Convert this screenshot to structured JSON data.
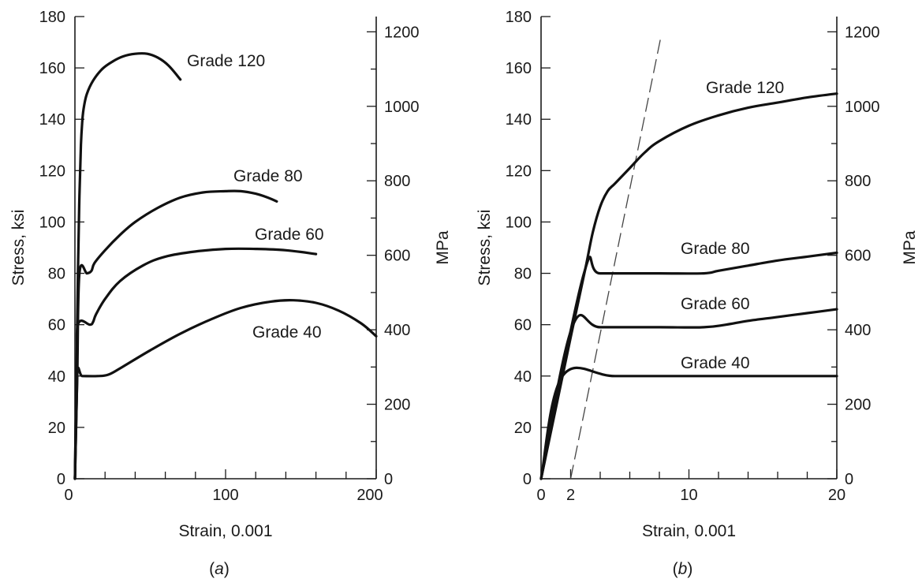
{
  "chart_data": [
    {
      "type": "line",
      "panel_label": "(a)",
      "xlabel": "Strain, 0.001",
      "ylabel": "Stress, ksi",
      "y2label": "MPa",
      "xlim": [
        0,
        200
      ],
      "ylim": [
        0,
        180
      ],
      "y2lim": [
        0,
        1241
      ],
      "x_ticks": [
        0,
        100,
        200
      ],
      "y_ticks": [
        0,
        20,
        40,
        60,
        80,
        100,
        120,
        140,
        160,
        180
      ],
      "y2_ticks": [
        0,
        200,
        400,
        600,
        800,
        1000,
        1200
      ],
      "grid": false,
      "series": [
        {
          "name": "Grade 120",
          "x": [
            0,
            1,
            2,
            3,
            4,
            5,
            6,
            8,
            12,
            18,
            25,
            32,
            40,
            48,
            55,
            62,
            70
          ],
          "y": [
            0,
            40,
            80,
            110,
            130,
            140,
            145,
            150,
            155,
            159.5,
            162.5,
            164.5,
            165.5,
            165.5,
            164,
            161,
            155.5
          ]
        },
        {
          "name": "Grade 80",
          "x": [
            0,
            1.5,
            3,
            8,
            11,
            13,
            20,
            30,
            40,
            55,
            70,
            85,
            100,
            110,
            120,
            128,
            134
          ],
          "y": [
            0,
            40,
            80,
            80,
            81,
            84,
            89,
            95,
            100,
            105.5,
            109.5,
            111.5,
            112,
            112,
            111,
            109.5,
            108
          ]
        },
        {
          "name": "Grade 60",
          "x": [
            0,
            1.5,
            2,
            10,
            12,
            14,
            20,
            30,
            45,
            60,
            80,
            100,
            120,
            140,
            160
          ],
          "y": [
            0,
            40,
            60,
            60,
            61,
            64,
            70,
            77,
            83,
            86.5,
            88.5,
            89.5,
            89.5,
            89,
            87.5
          ]
        },
        {
          "name": "Grade 40",
          "x": [
            0,
            1.4,
            5,
            15,
            22,
            30,
            50,
            70,
            90,
            110,
            130,
            145,
            160,
            175,
            190,
            200
          ],
          "y": [
            0,
            40,
            40,
            40,
            40.5,
            43,
            50,
            56.5,
            62,
            66.5,
            69,
            69.5,
            68.5,
            65.5,
            60.5,
            55.5
          ]
        }
      ],
      "annotations": [
        "Grade 120",
        "Grade 80",
        "Grade 60",
        "Grade 40"
      ]
    },
    {
      "type": "line",
      "panel_label": "(b)",
      "xlabel": "Strain, 0.001",
      "ylabel": "Stress, ksi",
      "y2label": "MPa",
      "xlim": [
        0,
        20
      ],
      "ylim": [
        0,
        180
      ],
      "y2lim": [
        0,
        1241
      ],
      "x_ticks": [
        0,
        2,
        10,
        20
      ],
      "x_minor_ticks": [
        4,
        6,
        8,
        12,
        14,
        16,
        18
      ],
      "y_ticks": [
        0,
        20,
        40,
        60,
        80,
        100,
        120,
        140,
        160,
        180
      ],
      "y2_ticks": [
        0,
        200,
        400,
        600,
        800,
        1000,
        1200
      ],
      "grid": false,
      "series": [
        {
          "name": "Grade 120",
          "x": [
            0,
            2,
            3,
            3.5,
            4,
            4.5,
            5,
            6,
            7,
            8,
            10,
            12,
            14,
            16,
            18,
            20
          ],
          "y": [
            0,
            55,
            82,
            96,
            106,
            112,
            115,
            121,
            127,
            131.5,
            137.5,
            141.5,
            144.5,
            146.5,
            148.5,
            150
          ]
        },
        {
          "name": "Grade 80",
          "x": [
            0,
            2.9,
            4,
            8,
            11,
            12,
            14,
            16,
            18,
            20
          ],
          "y": [
            0,
            80,
            80,
            80,
            80,
            81,
            83,
            85,
            86.5,
            88
          ]
        },
        {
          "name": "Grade 60",
          "x": [
            0,
            2.1,
            4,
            8,
            11,
            12.5,
            14,
            16,
            18,
            20
          ],
          "y": [
            0,
            59,
            59,
            59,
            59,
            60,
            61.5,
            63,
            64.5,
            66
          ]
        },
        {
          "name": "Grade 40",
          "x": [
            0,
            1.45,
            5,
            10,
            15,
            20
          ],
          "y": [
            0,
            40,
            40,
            40,
            40,
            40
          ]
        }
      ],
      "offset_line": {
        "x": [
          2,
          8.1
        ],
        "y": [
          0,
          172
        ]
      },
      "annotations": [
        "Grade 120",
        "Grade 80",
        "Grade 60",
        "Grade 40"
      ]
    }
  ]
}
